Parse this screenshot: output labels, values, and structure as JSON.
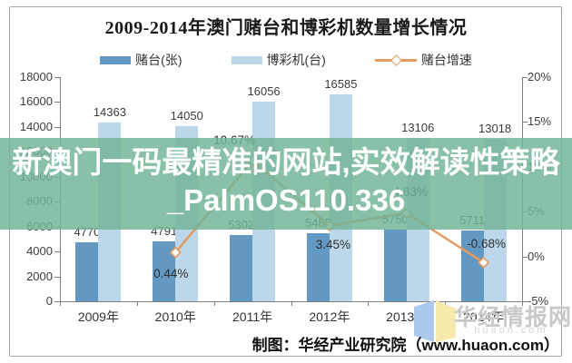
{
  "title": "2009-2014年澳门赌台和博彩机数量增长情况",
  "legend": [
    {
      "label": "赌台(张)",
      "type": "bar",
      "color": "#6398c3"
    },
    {
      "label": "博彩机(台)",
      "type": "bar",
      "color": "#bdd7ea"
    },
    {
      "label": "赌台增速",
      "type": "line",
      "color": "#e59a5f"
    }
  ],
  "chart_data": {
    "type": "bar+line",
    "title": "2009-2014年澳门赌台和博彩机数量增长情况",
    "categories": [
      "2009年",
      "2010年",
      "2011年",
      "2012年",
      "2013年",
      "2014年"
    ],
    "series": [
      {
        "name": "赌台(张)",
        "type": "bar",
        "axis": "left",
        "color": "#6398c3",
        "values": [
          4770,
          4791,
          5302,
          5485,
          5750,
          5711
        ]
      },
      {
        "name": "博彩机(台)",
        "type": "bar",
        "axis": "left",
        "color": "#bdd7ea",
        "values": [
          14363,
          14050,
          16056,
          16585,
          13106,
          13018
        ]
      },
      {
        "name": "赌台增速",
        "type": "line",
        "axis": "right",
        "color": "#e59a5f",
        "values": [
          null,
          0.44,
          10.67,
          3.45,
          4.83,
          -0.68
        ],
        "labels": [
          null,
          "0.44%",
          "10.67%",
          "3.45%",
          "4.83%",
          "-0.68%"
        ]
      }
    ],
    "left_axis": {
      "min": 0,
      "max": 18000,
      "step": 2000
    },
    "right_axis": {
      "min": -5,
      "max": 20,
      "step": 5,
      "suffix": "%"
    },
    "grid": false,
    "legend_position": "top"
  },
  "overlay": {
    "text": "新澳门一码最精准的网站,实效解读性策略_PalmOS110.336",
    "band_color": "#71b497"
  },
  "watermark": {
    "name": "华经情报网",
    "domain": "huaon.com"
  },
  "footer": "制图：华经产业研究院（www.huaon.com）"
}
